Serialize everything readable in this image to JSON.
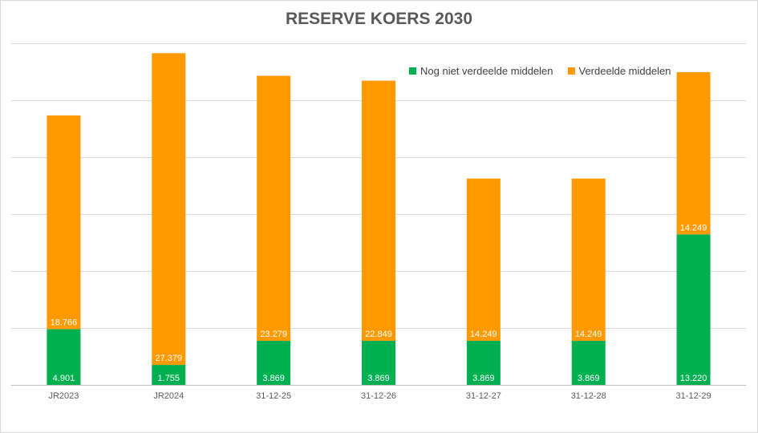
{
  "chart_data": {
    "type": "bar",
    "stacked": true,
    "title": "RESERVE KOERS 2030",
    "xlabel": "",
    "ylabel": "",
    "categories": [
      "JR2023",
      "JR2024",
      "31-12-25",
      "31-12-26",
      "31-12-27",
      "31-12-28",
      "31-12-29"
    ],
    "series": [
      {
        "name": "Nog niet verdeelde middelen",
        "color": "#00b050",
        "values": [
          4901,
          1755,
          3869,
          3869,
          3869,
          3869,
          13220
        ],
        "labels": [
          "4.901",
          "1.755",
          "3.869",
          "3.869",
          "3.869",
          "3.869",
          "13.220"
        ]
      },
      {
        "name": "Verdeelde middelen",
        "color": "#ff9900",
        "values": [
          18766,
          27379,
          23279,
          22849,
          14249,
          14249,
          14249
        ],
        "labels": [
          "18.766",
          "27.379",
          "23.279",
          "22.849",
          "14.249",
          "14.249",
          "14.249"
        ]
      }
    ],
    "ylim": [
      0,
      30000
    ],
    "y_gridlines": [
      0,
      5000,
      10000,
      15000,
      20000,
      25000,
      30000
    ],
    "grid": true,
    "y_tick_labels_visible": false,
    "legend_position": "top-right"
  }
}
